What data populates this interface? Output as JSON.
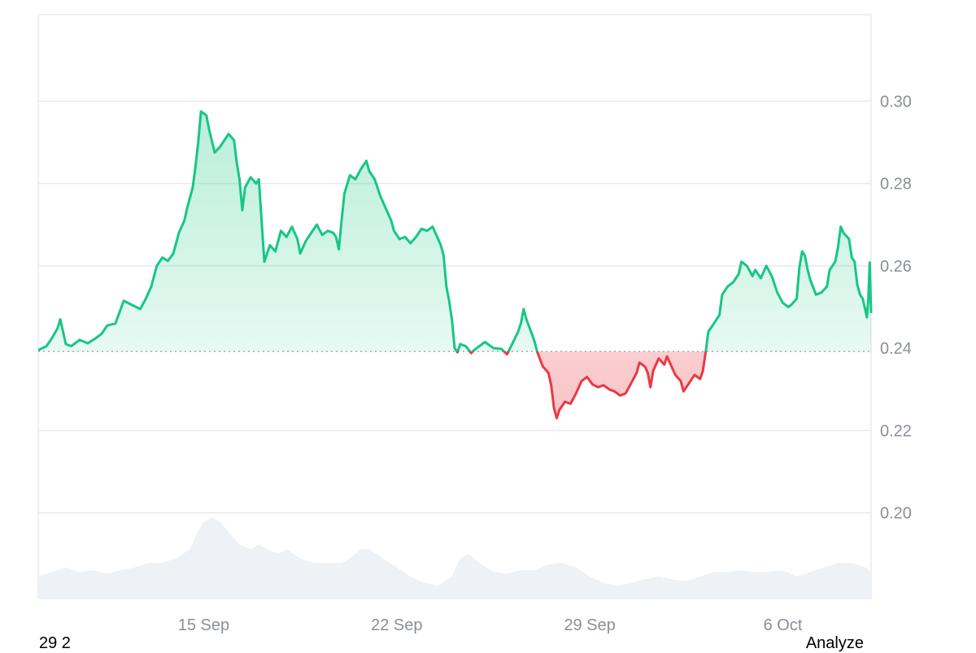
{
  "chart_data": {
    "type": "area",
    "baseline": 0.2392,
    "ylim": [
      0.179,
      0.321
    ],
    "y_ticks": [
      {
        "value": 0.3,
        "label": "0.30"
      },
      {
        "value": 0.28,
        "label": "0.28"
      },
      {
        "value": 0.26,
        "label": "0.26"
      },
      {
        "value": 0.24,
        "label": "0.24"
      },
      {
        "value": 0.22,
        "label": "0.22"
      },
      {
        "value": 0.2,
        "label": "0.20"
      }
    ],
    "x_ticks": [
      {
        "day": 15,
        "label": "15 Sep"
      },
      {
        "day": 22,
        "label": "22 Sep"
      },
      {
        "day": 29,
        "label": "29 Sep"
      },
      {
        "day": 36,
        "label": "6 Oct"
      }
    ],
    "x_range": [
      9.0,
      39.2
    ],
    "colors": {
      "up": "#16c784",
      "down": "#ea3943",
      "up_fill": "#16c784",
      "down_fill": "#ea3943",
      "volume": "#eef1f5",
      "grid": "#e8eaed",
      "baseline": "#8e929b"
    },
    "price_points": [
      [
        9.0,
        0.2395
      ],
      [
        9.3,
        0.2405
      ],
      [
        9.5,
        0.2425
      ],
      [
        9.7,
        0.2448
      ],
      [
        9.8,
        0.247
      ],
      [
        10.0,
        0.241
      ],
      [
        10.2,
        0.2405
      ],
      [
        10.5,
        0.242
      ],
      [
        10.8,
        0.2412
      ],
      [
        11.1,
        0.2425
      ],
      [
        11.3,
        0.2435
      ],
      [
        11.5,
        0.2455
      ],
      [
        11.8,
        0.246
      ],
      [
        12.1,
        0.2515
      ],
      [
        12.4,
        0.2505
      ],
      [
        12.7,
        0.2495
      ],
      [
        12.9,
        0.252
      ],
      [
        13.1,
        0.255
      ],
      [
        13.3,
        0.26
      ],
      [
        13.5,
        0.262
      ],
      [
        13.7,
        0.2612
      ],
      [
        13.9,
        0.263
      ],
      [
        14.1,
        0.268
      ],
      [
        14.3,
        0.271
      ],
      [
        14.4,
        0.274
      ],
      [
        14.6,
        0.279
      ],
      [
        14.7,
        0.284
      ],
      [
        14.8,
        0.29
      ],
      [
        14.9,
        0.2975
      ],
      [
        15.1,
        0.2965
      ],
      [
        15.2,
        0.293
      ],
      [
        15.4,
        0.2875
      ],
      [
        15.6,
        0.289
      ],
      [
        15.7,
        0.29
      ],
      [
        15.9,
        0.292
      ],
      [
        16.1,
        0.2905
      ],
      [
        16.2,
        0.285
      ],
      [
        16.3,
        0.281
      ],
      [
        16.4,
        0.2735
      ],
      [
        16.5,
        0.279
      ],
      [
        16.7,
        0.2815
      ],
      [
        16.9,
        0.28
      ],
      [
        17.0,
        0.281
      ],
      [
        17.1,
        0.271
      ],
      [
        17.2,
        0.261
      ],
      [
        17.4,
        0.265
      ],
      [
        17.6,
        0.2635
      ],
      [
        17.8,
        0.2685
      ],
      [
        18.0,
        0.267
      ],
      [
        18.2,
        0.2695
      ],
      [
        18.4,
        0.2665
      ],
      [
        18.5,
        0.263
      ],
      [
        18.7,
        0.266
      ],
      [
        18.9,
        0.268
      ],
      [
        19.1,
        0.27
      ],
      [
        19.3,
        0.2675
      ],
      [
        19.5,
        0.2685
      ],
      [
        19.7,
        0.268
      ],
      [
        19.8,
        0.267
      ],
      [
        19.9,
        0.264
      ],
      [
        20.0,
        0.271
      ],
      [
        20.1,
        0.2775
      ],
      [
        20.3,
        0.282
      ],
      [
        20.5,
        0.281
      ],
      [
        20.7,
        0.2835
      ],
      [
        20.9,
        0.2855
      ],
      [
        21.0,
        0.283
      ],
      [
        21.2,
        0.281
      ],
      [
        21.4,
        0.277
      ],
      [
        21.6,
        0.274
      ],
      [
        21.8,
        0.271
      ],
      [
        21.9,
        0.2685
      ],
      [
        22.1,
        0.2665
      ],
      [
        22.3,
        0.267
      ],
      [
        22.5,
        0.2655
      ],
      [
        22.7,
        0.267
      ],
      [
        22.9,
        0.269
      ],
      [
        23.1,
        0.2685
      ],
      [
        23.3,
        0.2695
      ],
      [
        23.5,
        0.2665
      ],
      [
        23.6,
        0.265
      ],
      [
        23.7,
        0.2625
      ],
      [
        23.8,
        0.255
      ],
      [
        23.9,
        0.2515
      ],
      [
        24.0,
        0.247
      ],
      [
        24.1,
        0.24
      ],
      [
        24.2,
        0.239
      ],
      [
        24.3,
        0.241
      ],
      [
        24.5,
        0.2405
      ],
      [
        24.7,
        0.2388
      ],
      [
        24.8,
        0.2395
      ],
      [
        25.0,
        0.2405
      ],
      [
        25.2,
        0.2415
      ],
      [
        25.5,
        0.24
      ],
      [
        25.8,
        0.2398
      ],
      [
        26.0,
        0.2385
      ],
      [
        26.2,
        0.2412
      ],
      [
        26.4,
        0.244
      ],
      [
        26.5,
        0.246
      ],
      [
        26.6,
        0.2495
      ],
      [
        26.7,
        0.247
      ],
      [
        26.9,
        0.2435
      ],
      [
        27.0,
        0.2415
      ],
      [
        27.1,
        0.239
      ],
      [
        27.3,
        0.2355
      ],
      [
        27.5,
        0.234
      ],
      [
        27.6,
        0.231
      ],
      [
        27.7,
        0.2255
      ],
      [
        27.8,
        0.223
      ],
      [
        27.9,
        0.225
      ],
      [
        28.1,
        0.227
      ],
      [
        28.3,
        0.2265
      ],
      [
        28.5,
        0.229
      ],
      [
        28.7,
        0.232
      ],
      [
        28.9,
        0.233
      ],
      [
        29.1,
        0.2312
      ],
      [
        29.3,
        0.2305
      ],
      [
        29.5,
        0.231
      ],
      [
        29.7,
        0.23
      ],
      [
        29.9,
        0.2295
      ],
      [
        30.1,
        0.2285
      ],
      [
        30.3,
        0.229
      ],
      [
        30.5,
        0.2315
      ],
      [
        30.7,
        0.234
      ],
      [
        30.8,
        0.2365
      ],
      [
        31.0,
        0.2355
      ],
      [
        31.1,
        0.234
      ],
      [
        31.2,
        0.2305
      ],
      [
        31.3,
        0.2345
      ],
      [
        31.5,
        0.2375
      ],
      [
        31.7,
        0.236
      ],
      [
        31.8,
        0.238
      ],
      [
        31.9,
        0.2365
      ],
      [
        32.1,
        0.2335
      ],
      [
        32.3,
        0.232
      ],
      [
        32.4,
        0.2295
      ],
      [
        32.6,
        0.2315
      ],
      [
        32.8,
        0.2335
      ],
      [
        33.0,
        0.2325
      ],
      [
        33.1,
        0.2345
      ],
      [
        33.2,
        0.239
      ],
      [
        33.3,
        0.244
      ],
      [
        33.5,
        0.246
      ],
      [
        33.7,
        0.248
      ],
      [
        33.8,
        0.253
      ],
      [
        34.0,
        0.255
      ],
      [
        34.2,
        0.256
      ],
      [
        34.4,
        0.258
      ],
      [
        34.5,
        0.261
      ],
      [
        34.7,
        0.26
      ],
      [
        34.9,
        0.2575
      ],
      [
        35.0,
        0.259
      ],
      [
        35.2,
        0.257
      ],
      [
        35.4,
        0.26
      ],
      [
        35.6,
        0.2575
      ],
      [
        35.8,
        0.2535
      ],
      [
        36.0,
        0.251
      ],
      [
        36.2,
        0.25
      ],
      [
        36.3,
        0.2505
      ],
      [
        36.5,
        0.252
      ],
      [
        36.6,
        0.2595
      ],
      [
        36.7,
        0.2635
      ],
      [
        36.8,
        0.2625
      ],
      [
        36.9,
        0.259
      ],
      [
        37.0,
        0.2565
      ],
      [
        37.2,
        0.253
      ],
      [
        37.4,
        0.2535
      ],
      [
        37.6,
        0.255
      ],
      [
        37.7,
        0.259
      ],
      [
        37.9,
        0.261
      ],
      [
        38.0,
        0.2645
      ],
      [
        38.1,
        0.2695
      ],
      [
        38.2,
        0.268
      ],
      [
        38.4,
        0.2665
      ],
      [
        38.5,
        0.262
      ],
      [
        38.6,
        0.261
      ],
      [
        38.7,
        0.2555
      ],
      [
        38.8,
        0.253
      ],
      [
        38.9,
        0.252
      ],
      [
        39.0,
        0.249
      ],
      [
        39.05,
        0.2475
      ],
      [
        39.1,
        0.252
      ],
      [
        39.15,
        0.2608
      ],
      [
        39.2,
        0.2485
      ]
    ],
    "volume_points": [
      [
        9.0,
        0.25
      ],
      [
        9.5,
        0.3
      ],
      [
        10.0,
        0.35
      ],
      [
        10.5,
        0.3
      ],
      [
        11.0,
        0.32
      ],
      [
        11.5,
        0.28
      ],
      [
        12.0,
        0.32
      ],
      [
        12.5,
        0.35
      ],
      [
        13.0,
        0.4
      ],
      [
        13.5,
        0.4
      ],
      [
        14.0,
        0.45
      ],
      [
        14.5,
        0.55
      ],
      [
        14.8,
        0.75
      ],
      [
        15.0,
        0.85
      ],
      [
        15.3,
        0.9
      ],
      [
        15.6,
        0.85
      ],
      [
        16.0,
        0.7
      ],
      [
        16.3,
        0.6
      ],
      [
        16.7,
        0.55
      ],
      [
        17.0,
        0.6
      ],
      [
        17.3,
        0.55
      ],
      [
        17.7,
        0.5
      ],
      [
        18.0,
        0.55
      ],
      [
        18.5,
        0.45
      ],
      [
        19.0,
        0.4
      ],
      [
        19.5,
        0.4
      ],
      [
        20.0,
        0.4
      ],
      [
        20.3,
        0.45
      ],
      [
        20.7,
        0.55
      ],
      [
        21.0,
        0.55
      ],
      [
        21.5,
        0.45
      ],
      [
        22.0,
        0.35
      ],
      [
        22.5,
        0.25
      ],
      [
        23.0,
        0.18
      ],
      [
        23.5,
        0.15
      ],
      [
        24.0,
        0.25
      ],
      [
        24.3,
        0.45
      ],
      [
        24.6,
        0.5
      ],
      [
        25.0,
        0.4
      ],
      [
        25.5,
        0.3
      ],
      [
        26.0,
        0.28
      ],
      [
        26.5,
        0.32
      ],
      [
        27.0,
        0.32
      ],
      [
        27.5,
        0.38
      ],
      [
        28.0,
        0.4
      ],
      [
        28.5,
        0.35
      ],
      [
        29.0,
        0.25
      ],
      [
        29.5,
        0.18
      ],
      [
        30.0,
        0.15
      ],
      [
        30.5,
        0.18
      ],
      [
        31.0,
        0.22
      ],
      [
        31.5,
        0.25
      ],
      [
        32.0,
        0.22
      ],
      [
        32.5,
        0.2
      ],
      [
        33.0,
        0.25
      ],
      [
        33.5,
        0.3
      ],
      [
        34.0,
        0.3
      ],
      [
        34.5,
        0.32
      ],
      [
        35.0,
        0.3
      ],
      [
        35.5,
        0.3
      ],
      [
        36.0,
        0.32
      ],
      [
        36.5,
        0.25
      ],
      [
        37.0,
        0.3
      ],
      [
        37.5,
        0.35
      ],
      [
        38.0,
        0.4
      ],
      [
        38.5,
        0.4
      ],
      [
        39.0,
        0.35
      ],
      [
        39.2,
        0.3
      ]
    ]
  },
  "footer": {
    "left_text": "29 2",
    "right_text": "Analyze"
  }
}
